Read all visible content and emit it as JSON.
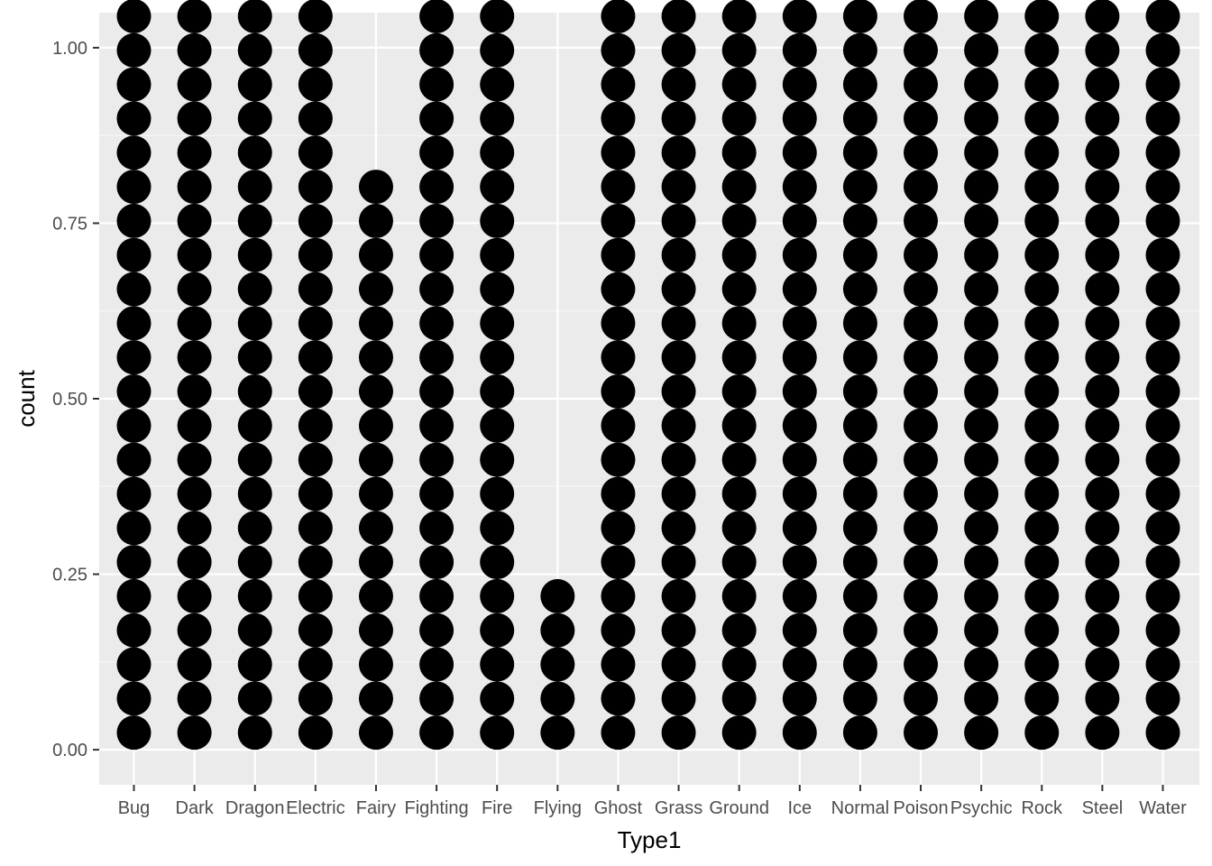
{
  "chart_data": {
    "type": "dotplot",
    "title": "",
    "xlabel": "Type1",
    "ylabel": "count",
    "categories": [
      "Bug",
      "Dark",
      "Dragon",
      "Electric",
      "Fairy",
      "Fighting",
      "Fire",
      "Flying",
      "Ghost",
      "Grass",
      "Ground",
      "Ice",
      "Normal",
      "Poison",
      "Psychic",
      "Rock",
      "Steel",
      "Water"
    ],
    "dot_counts": [
      22,
      22,
      22,
      22,
      17,
      22,
      22,
      5,
      22,
      22,
      22,
      22,
      22,
      22,
      22,
      22,
      22,
      22
    ],
    "ylim": [
      -0.05,
      1.05
    ],
    "yticks": [
      0.0,
      0.25,
      0.5,
      0.75,
      1.0
    ],
    "ytick_labels": [
      "0.00",
      "0.25",
      "0.50",
      "0.75",
      "1.00"
    ],
    "grid": true,
    "colors": {
      "panel_background": "#ebebeb",
      "grid_major": "#ffffff",
      "grid_minor": "#f6f6f6",
      "dot_fill": "#000000",
      "tick_color": "#333333"
    }
  }
}
